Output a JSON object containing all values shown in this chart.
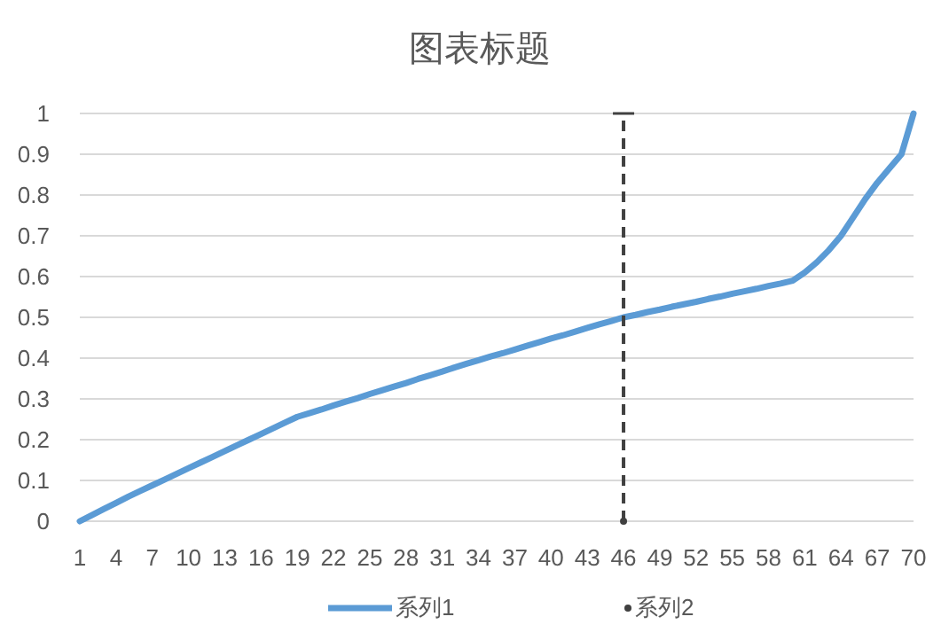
{
  "chart_data": {
    "type": "line",
    "title": "图表标题",
    "categories": [
      "1",
      null,
      null,
      "4",
      null,
      null,
      "7",
      null,
      null,
      "10",
      null,
      null,
      "13",
      null,
      null,
      "16",
      null,
      null,
      "19",
      null,
      null,
      "22",
      null,
      null,
      "25",
      null,
      null,
      "28",
      null,
      null,
      "31",
      null,
      null,
      "34",
      null,
      null,
      "37",
      null,
      null,
      "40",
      null,
      null,
      "43",
      null,
      null,
      "46",
      null,
      null,
      "49",
      null,
      null,
      "52",
      null,
      null,
      "55",
      null,
      null,
      "58",
      null,
      null,
      "61",
      null,
      null,
      "64",
      null,
      null,
      "67",
      null,
      null,
      "70"
    ],
    "series": [
      {
        "name": "系列1",
        "color": "#5b9bd5",
        "values": [
          0,
          0.015,
          0.03,
          0.045,
          0.06,
          0.074,
          0.088,
          0.102,
          0.116,
          0.13,
          0.144,
          0.158,
          0.172,
          0.186,
          0.2,
          0.214,
          0.228,
          0.242,
          0.256,
          0.265,
          0.274,
          0.284,
          0.293,
          0.302,
          0.312,
          0.321,
          0.33,
          0.339,
          0.349,
          0.358,
          0.367,
          0.377,
          0.386,
          0.395,
          0.404,
          0.412,
          0.421,
          0.43,
          0.439,
          0.448,
          0.456,
          0.465,
          0.474,
          0.483,
          0.491,
          0.5,
          0.506,
          0.513,
          0.519,
          0.526,
          0.532,
          0.538,
          0.545,
          0.551,
          0.558,
          0.564,
          0.57,
          0.577,
          0.583,
          0.59,
          0.61,
          0.635,
          0.665,
          0.7,
          0.745,
          0.79,
          0.83,
          0.865,
          0.9,
          1
        ]
      },
      {
        "name": "系列2",
        "type": "scatter",
        "marker": "circle",
        "color": "#404040",
        "x": [
          "46"
        ],
        "values": [
          0
        ],
        "errors": [
          [
            0,
            1
          ]
        ],
        "line_style": "dashed"
      }
    ],
    "ylim": [
      0,
      1
    ],
    "yticks": [
      0,
      0.1,
      0.2,
      0.3,
      0.4,
      0.5,
      0.6,
      0.7,
      0.8,
      0.9,
      1
    ],
    "grid": "y",
    "legend": "bottom",
    "line_style": "solid",
    "marker": "none"
  }
}
